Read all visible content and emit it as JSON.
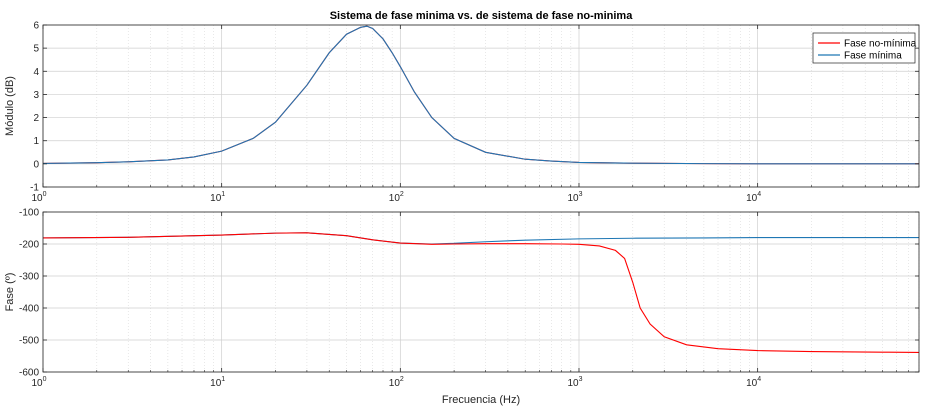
{
  "chart_data": [
    {
      "type": "line",
      "title": "Sistema de fase minima vs. de sistema de fase no-minima",
      "ylabel": "Módulo (dB)",
      "xlabel": "",
      "xscale": "log",
      "xlim": [
        1,
        80000
      ],
      "ylim": [
        -1,
        6
      ],
      "yticks": [
        -1,
        0,
        1,
        2,
        3,
        4,
        5,
        6
      ],
      "xticks": [
        {
          "value": 1,
          "base": "10",
          "exp": "0"
        },
        {
          "value": 10,
          "base": "10",
          "exp": "1"
        },
        {
          "value": 100,
          "base": "10",
          "exp": "2"
        },
        {
          "value": 1000,
          "base": "10",
          "exp": "3"
        },
        {
          "value": 10000,
          "base": "10",
          "exp": "4"
        }
      ],
      "grid": true,
      "legend": "top-right",
      "series": [
        {
          "name": "Fase no-mínima",
          "color": "#ff0000",
          "x": [
            1,
            2,
            3,
            5,
            7,
            10,
            15,
            20,
            30,
            40,
            50,
            60,
            65,
            70,
            80,
            90,
            100,
            120,
            150,
            200,
            300,
            500,
            700,
            1000,
            2000,
            5000,
            10000,
            80000
          ],
          "y": [
            0.02,
            0.05,
            0.09,
            0.17,
            0.3,
            0.55,
            1.1,
            1.8,
            3.4,
            4.8,
            5.6,
            5.9,
            5.95,
            5.85,
            5.4,
            4.8,
            4.2,
            3.1,
            2.0,
            1.1,
            0.5,
            0.2,
            0.12,
            0.06,
            0.03,
            0.01,
            0.0,
            0.0
          ]
        },
        {
          "name": "Fase mínima",
          "color": "#1f77b4",
          "x": [
            1,
            2,
            3,
            5,
            7,
            10,
            15,
            20,
            30,
            40,
            50,
            60,
            65,
            70,
            80,
            90,
            100,
            120,
            150,
            200,
            300,
            500,
            700,
            1000,
            2000,
            5000,
            10000,
            80000
          ],
          "y": [
            0.02,
            0.05,
            0.09,
            0.17,
            0.3,
            0.55,
            1.1,
            1.8,
            3.4,
            4.8,
            5.6,
            5.9,
            5.95,
            5.85,
            5.4,
            4.8,
            4.2,
            3.1,
            2.0,
            1.1,
            0.5,
            0.2,
            0.12,
            0.06,
            0.03,
            0.01,
            0.0,
            0.0
          ]
        }
      ]
    },
    {
      "type": "line",
      "title": "",
      "ylabel": "Fase (º)",
      "xlabel": "Frecuencia (Hz)",
      "xscale": "log",
      "xlim": [
        1,
        80000
      ],
      "ylim": [
        -600,
        -100
      ],
      "yticks": [
        -600,
        -500,
        -400,
        -300,
        -200,
        -100
      ],
      "xticks": [
        {
          "value": 1,
          "base": "10",
          "exp": "0"
        },
        {
          "value": 10,
          "base": "10",
          "exp": "1"
        },
        {
          "value": 100,
          "base": "10",
          "exp": "2"
        },
        {
          "value": 1000,
          "base": "10",
          "exp": "3"
        },
        {
          "value": 10000,
          "base": "10",
          "exp": "4"
        }
      ],
      "grid": true,
      "series": [
        {
          "name": "Fase mínima",
          "color": "#1f77b4",
          "x": [
            1,
            3,
            10,
            20,
            30,
            50,
            70,
            100,
            150,
            200,
            300,
            500,
            1000,
            2000,
            5000,
            10000,
            30000,
            80000
          ],
          "y": [
            -181,
            -179,
            -172,
            -166,
            -165,
            -174,
            -187,
            -197,
            -200,
            -198,
            -193,
            -188,
            -184,
            -182,
            -181,
            -180,
            -180,
            -180
          ]
        },
        {
          "name": "Fase no-mínima",
          "color": "#ff0000",
          "x": [
            1,
            3,
            10,
            20,
            30,
            50,
            70,
            100,
            150,
            200,
            300,
            500,
            800,
            1000,
            1300,
            1600,
            1800,
            2000,
            2200,
            2500,
            3000,
            4000,
            6000,
            10000,
            20000,
            50000,
            80000
          ],
          "y": [
            -181,
            -179,
            -172,
            -166,
            -165,
            -174,
            -187,
            -197,
            -201,
            -200,
            -199,
            -199,
            -200,
            -201,
            -206,
            -220,
            -245,
            -320,
            -400,
            -450,
            -490,
            -515,
            -527,
            -533,
            -536,
            -538,
            -539
          ]
        }
      ]
    }
  ]
}
